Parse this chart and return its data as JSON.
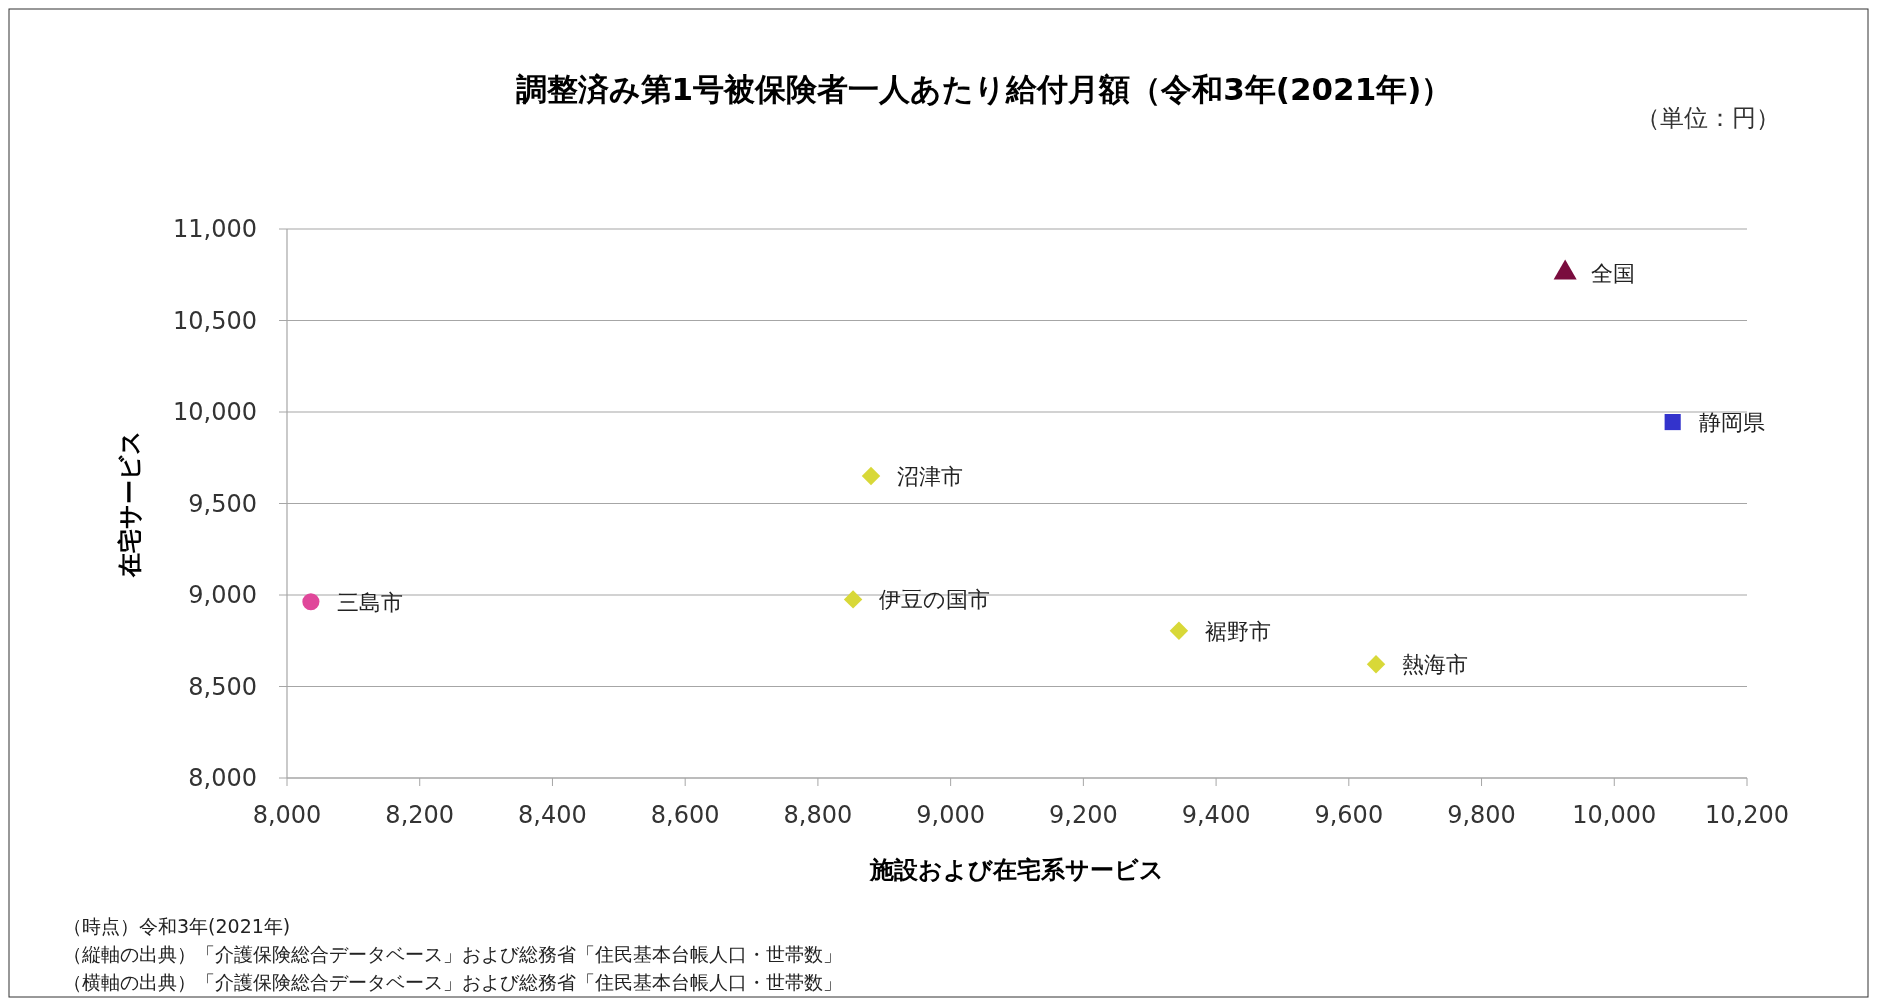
{
  "chart_data": {
    "type": "scatter",
    "title": "調整済み第1号被保険者一人あたり給付月額（令和3年(2021年)）",
    "xlabel": "施設および在宅系サービス",
    "ylabel": "在宅サービス",
    "xlim": [
      8000,
      10200
    ],
    "xticks": [
      {
        "value": 8000,
        "label": "8,000"
      },
      {
        "value": 8200,
        "label": "8,200"
      },
      {
        "value": 8400,
        "label": "8,400"
      },
      {
        "value": 8600,
        "label": "8,600"
      },
      {
        "value": 8800,
        "label": "8,800"
      },
      {
        "value": 9000,
        "label": "9,000"
      },
      {
        "value": 9200,
        "label": "9,200"
      },
      {
        "value": 9400,
        "label": "9,400"
      },
      {
        "value": 9600,
        "label": "9,600"
      },
      {
        "value": 9800,
        "label": "9,800"
      },
      {
        "value": 10000,
        "label": "10,000"
      },
      {
        "value": 10200,
        "label": "10,200"
      }
    ],
    "ylim": [
      8000,
      11000
    ],
    "yticks": [
      {
        "value": 8000,
        "label": "8,000"
      },
      {
        "value": 8500,
        "label": "8,500"
      },
      {
        "value": 9000,
        "label": "9,000"
      },
      {
        "value": 9500,
        "label": "9,500"
      },
      {
        "value": 10000,
        "label": "10,000"
      },
      {
        "value": 10500,
        "label": "10,500"
      },
      {
        "value": 11000,
        "label": "11,000"
      }
    ],
    "grid": "y",
    "series": [
      {
        "name": "全国",
        "color": "#7a0c3e",
        "marker": "triangle",
        "x": [
          9926
        ],
        "values": [
          10760
        ]
      },
      {
        "name": "静岡県",
        "color": "#3333cc",
        "marker": "square",
        "x": [
          10088
        ],
        "values": [
          9945
        ]
      },
      {
        "name": "沼津市",
        "color": "#d8d838",
        "marker": "diamond",
        "x": [
          8880
        ],
        "values": [
          9650
        ]
      },
      {
        "name": "三島市",
        "color": "#e0479a",
        "marker": "circle",
        "x": [
          8036
        ],
        "values": [
          8963
        ]
      },
      {
        "name": "伊豆の国市",
        "color": "#d8d838",
        "marker": "diamond",
        "x": [
          8853
        ],
        "values": [
          8976
        ]
      },
      {
        "name": "裾野市",
        "color": "#d8d838",
        "marker": "diamond",
        "x": [
          9344
        ],
        "values": [
          8805
        ]
      },
      {
        "name": "熱海市",
        "color": "#d8d838",
        "marker": "diamond",
        "x": [
          9641
        ],
        "values": [
          8622
        ]
      }
    ],
    "annotations": [
      "（単位：円）",
      "（時点）令和3年(2021年)",
      "（縦軸の出典）「介護保険総合データベース」および総務省「住民基本台帳人口・世帯数」",
      "（横軸の出典）「介護保険総合データベース」および総務省「住民基本台帳人口・世帯数」"
    ]
  }
}
